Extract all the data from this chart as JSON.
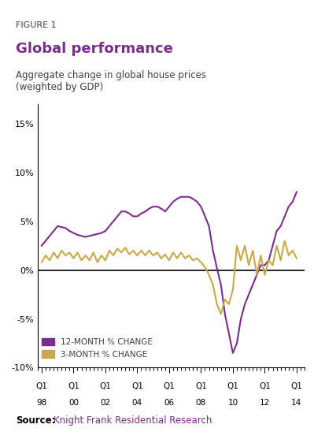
{
  "figure_label": "FIGURE 1",
  "title": "Global performance",
  "subtitle": "Aggregate change in global house prices\n(weighted by GDP)",
  "source_bold": "Source:",
  "source_text": "  Knight Frank Residential Research",
  "top_bar_color": "#8B008B",
  "title_color": "#7B2D8B",
  "figure_label_color": "#404040",
  "subtitle_color": "#404040",
  "ylim": [
    -10,
    17
  ],
  "yticks": [
    -10,
    -5,
    0,
    5,
    10,
    15
  ],
  "ytick_labels": [
    "-10%",
    "-5%",
    "0%",
    "5%",
    "10%",
    "15%"
  ],
  "xtick_years": [
    1998,
    2000,
    2002,
    2004,
    2006,
    2008,
    2010,
    2012,
    2014
  ],
  "xtick_labels_q": [
    "Q1",
    "Q1",
    "Q1",
    "Q1",
    "Q1",
    "Q1",
    "Q1",
    "Q1",
    "Q1"
  ],
  "xtick_labels_yr": [
    "98",
    "00",
    "02",
    "04",
    "06",
    "08",
    "10",
    "12",
    "14"
  ],
  "color_12m": "#7B2D8B",
  "color_3m": "#C8A84B",
  "legend_12m": "12-MONTH % CHANGE",
  "legend_3m": "3-MONTH % CHANGE",
  "line_12m_x": [
    1998.0,
    1998.25,
    1998.5,
    1998.75,
    1999.0,
    1999.25,
    1999.5,
    1999.75,
    2000.0,
    2000.25,
    2000.5,
    2000.75,
    2001.0,
    2001.25,
    2001.5,
    2001.75,
    2002.0,
    2002.25,
    2002.5,
    2002.75,
    2003.0,
    2003.25,
    2003.5,
    2003.75,
    2004.0,
    2004.25,
    2004.5,
    2004.75,
    2005.0,
    2005.25,
    2005.5,
    2005.75,
    2006.0,
    2006.25,
    2006.5,
    2006.75,
    2007.0,
    2007.25,
    2007.5,
    2007.75,
    2008.0,
    2008.25,
    2008.5,
    2008.75,
    2009.0,
    2009.25,
    2009.5,
    2009.75,
    2010.0,
    2010.25,
    2010.5,
    2010.75,
    2011.0,
    2011.25,
    2011.5,
    2011.75,
    2012.0,
    2012.25,
    2012.5,
    2012.75,
    2013.0,
    2013.25,
    2013.5,
    2013.75,
    2014.0
  ],
  "line_12m_y": [
    2.5,
    3.0,
    3.5,
    4.0,
    4.5,
    4.4,
    4.3,
    4.0,
    3.8,
    3.6,
    3.5,
    3.4,
    3.5,
    3.6,
    3.7,
    3.8,
    4.0,
    4.5,
    5.0,
    5.5,
    6.0,
    6.0,
    5.8,
    5.5,
    5.5,
    5.8,
    6.0,
    6.3,
    6.5,
    6.5,
    6.3,
    6.0,
    6.5,
    7.0,
    7.3,
    7.5,
    7.5,
    7.5,
    7.3,
    7.0,
    6.5,
    5.5,
    4.5,
    2.0,
    0.2,
    -1.5,
    -4.5,
    -6.5,
    -8.5,
    -7.5,
    -5.0,
    -3.5,
    -2.5,
    -1.5,
    -0.5,
    0.5,
    0.5,
    1.0,
    2.5,
    4.0,
    4.5,
    5.5,
    6.5,
    7.0,
    8.0
  ],
  "line_3m_x": [
    1998.0,
    1998.25,
    1998.5,
    1998.75,
    1999.0,
    1999.25,
    1999.5,
    1999.75,
    2000.0,
    2000.25,
    2000.5,
    2000.75,
    2001.0,
    2001.25,
    2001.5,
    2001.75,
    2002.0,
    2002.25,
    2002.5,
    2002.75,
    2003.0,
    2003.25,
    2003.5,
    2003.75,
    2004.0,
    2004.25,
    2004.5,
    2004.75,
    2005.0,
    2005.25,
    2005.5,
    2005.75,
    2006.0,
    2006.25,
    2006.5,
    2006.75,
    2007.0,
    2007.25,
    2007.5,
    2007.75,
    2008.0,
    2008.25,
    2008.5,
    2008.75,
    2009.0,
    2009.25,
    2009.5,
    2009.75,
    2010.0,
    2010.25,
    2010.5,
    2010.75,
    2011.0,
    2011.25,
    2011.5,
    2011.75,
    2012.0,
    2012.25,
    2012.5,
    2012.75,
    2013.0,
    2013.25,
    2013.5,
    2013.75,
    2014.0
  ],
  "line_3m_y": [
    0.8,
    1.5,
    1.0,
    1.8,
    1.2,
    2.0,
    1.5,
    1.8,
    1.2,
    1.8,
    1.0,
    1.5,
    1.0,
    1.8,
    0.8,
    1.5,
    1.0,
    2.0,
    1.5,
    2.2,
    1.8,
    2.3,
    1.6,
    2.0,
    1.5,
    2.0,
    1.5,
    2.0,
    1.5,
    1.8,
    1.2,
    1.6,
    1.0,
    1.8,
    1.2,
    1.8,
    1.2,
    1.5,
    1.0,
    1.2,
    0.8,
    0.3,
    -0.5,
    -1.5,
    -3.5,
    -4.5,
    -3.0,
    -3.5,
    -2.0,
    2.5,
    1.0,
    2.5,
    0.5,
    2.0,
    -0.5,
    1.5,
    -0.5,
    1.0,
    0.5,
    2.5,
    1.0,
    3.0,
    1.5,
    2.0,
    1.2
  ]
}
